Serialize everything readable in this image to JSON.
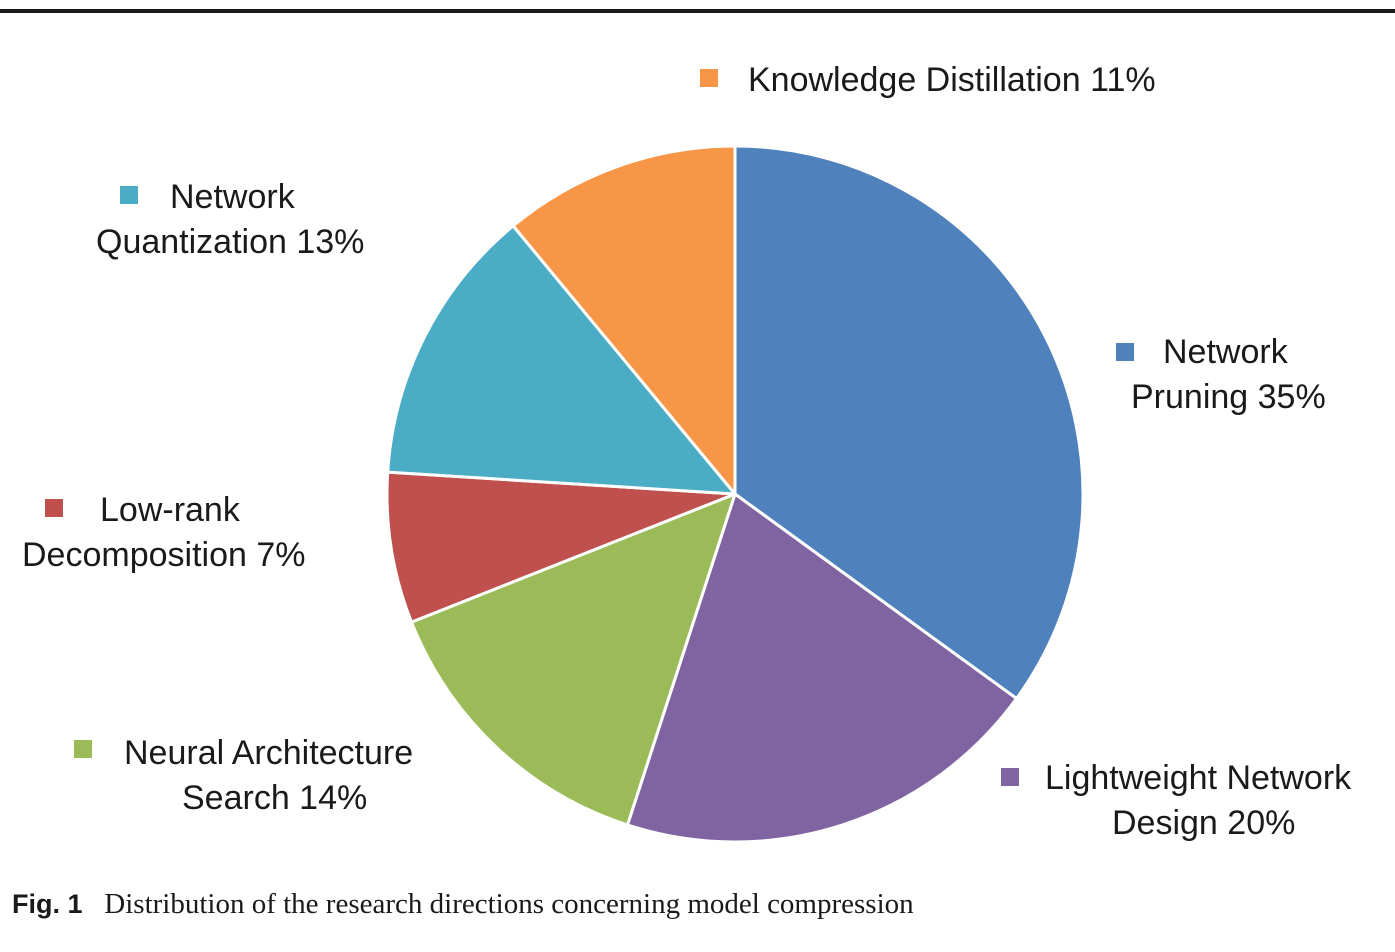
{
  "chart_data": {
    "type": "pie",
    "title": "",
    "legend": "labels beside slices",
    "slices": [
      {
        "label_lines": [
          "Network",
          "Pruning 35%"
        ],
        "category": "Network Pruning",
        "value": 35,
        "color": "#4F81BD"
      },
      {
        "label_lines": [
          "Lightweight Network",
          "Design 20%"
        ],
        "category": "Lightweight Network Design",
        "value": 20,
        "color": "#8064A2"
      },
      {
        "label_lines": [
          "Neural Architecture",
          "Search 14%"
        ],
        "category": "Neural Architecture Search",
        "value": 14,
        "color": "#9BBB59"
      },
      {
        "label_lines": [
          "Low-rank",
          "Decomposition 7%"
        ],
        "category": "Low-rank Decomposition",
        "value": 7,
        "color": "#C0504D"
      },
      {
        "label_lines": [
          "Network",
          "Quantization 13%"
        ],
        "category": "Network Quantization",
        "value": 13,
        "color": "#4BACC6"
      },
      {
        "label_lines": [
          "Knowledge Distillation 11%"
        ],
        "category": "Knowledge Distillation",
        "value": 11,
        "color": "#F79646"
      }
    ]
  },
  "caption": {
    "fig_number": "Fig. 1",
    "text": "Distribution of the research directions concerning model compression"
  }
}
